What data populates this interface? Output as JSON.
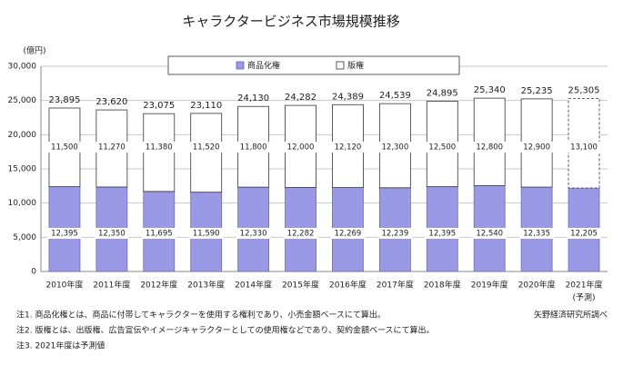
{
  "chart_data": {
    "type": "stacked_bar",
    "title": "キャラクタービジネス市場規模推移",
    "y_unit": "(億円)",
    "categories": [
      "2010年度",
      "2011年度",
      "2012年度",
      "2013年度",
      "2014年度",
      "2015年度",
      "2016年度",
      "2017年度",
      "2018年度",
      "2019年度",
      "2020年度",
      "2021年度"
    ],
    "x_sublabels": [
      null,
      null,
      null,
      null,
      null,
      null,
      null,
      null,
      null,
      null,
      null,
      "(予測)"
    ],
    "series": [
      {
        "name": "商品化権",
        "color": "#9999e6",
        "values": [
          12395,
          12350,
          11695,
          11590,
          12330,
          12282,
          12269,
          12239,
          12395,
          12540,
          12335,
          12205
        ],
        "value_labels": [
          "12,395",
          "12,350",
          "11,695",
          "11,590",
          "12,330",
          "12,282",
          "12,269",
          "12,239",
          "12,395",
          "12,540",
          "12,335",
          "12,205"
        ]
      },
      {
        "name": "版権",
        "color": "#ffffff",
        "values": [
          11500,
          11270,
          11380,
          11520,
          11800,
          12000,
          12120,
          12300,
          12500,
          12800,
          12900,
          13100
        ],
        "value_labels": [
          "11,500",
          "11,270",
          "11,380",
          "11,520",
          "11,800",
          "12,000",
          "12,120",
          "12,300",
          "12,500",
          "12,800",
          "12,900",
          "13,100"
        ]
      }
    ],
    "totals": [
      23895,
      23620,
      23075,
      23110,
      24130,
      24282,
      24389,
      24539,
      24895,
      25340,
      25235,
      25305
    ],
    "total_labels": [
      "23,895",
      "23,620",
      "23,075",
      "23,110",
      "24,130",
      "24,282",
      "24,389",
      "24,539",
      "24,895",
      "25,340",
      "25,235",
      "25,305"
    ],
    "ylim": [
      0,
      30000
    ],
    "yticks": [
      0,
      {
        "value": 5000,
        "label": "5,000"
      },
      {
        "value": 10000,
        "label": "10,000"
      },
      {
        "value": 15000,
        "label": "15,000"
      },
      {
        "value": 20000,
        "label": "20,000"
      },
      {
        "value": 25000,
        "label": "25,000"
      },
      {
        "value": 30000,
        "label": "30,000"
      }
    ],
    "grid": true,
    "legend": "top",
    "notes": [
      "注1.  商品化権とは、商品に付帯してキャラクターを使用する権利であり、小売金額ベースにて算出。",
      "注2.  版権とは、出版権、広告宣伝やイメージキャラクターとしての使用権などであり、契約金額ベースにて算出。",
      "注3.  2021年度は予測値"
    ],
    "source": "矢野経済研究所調べ"
  }
}
